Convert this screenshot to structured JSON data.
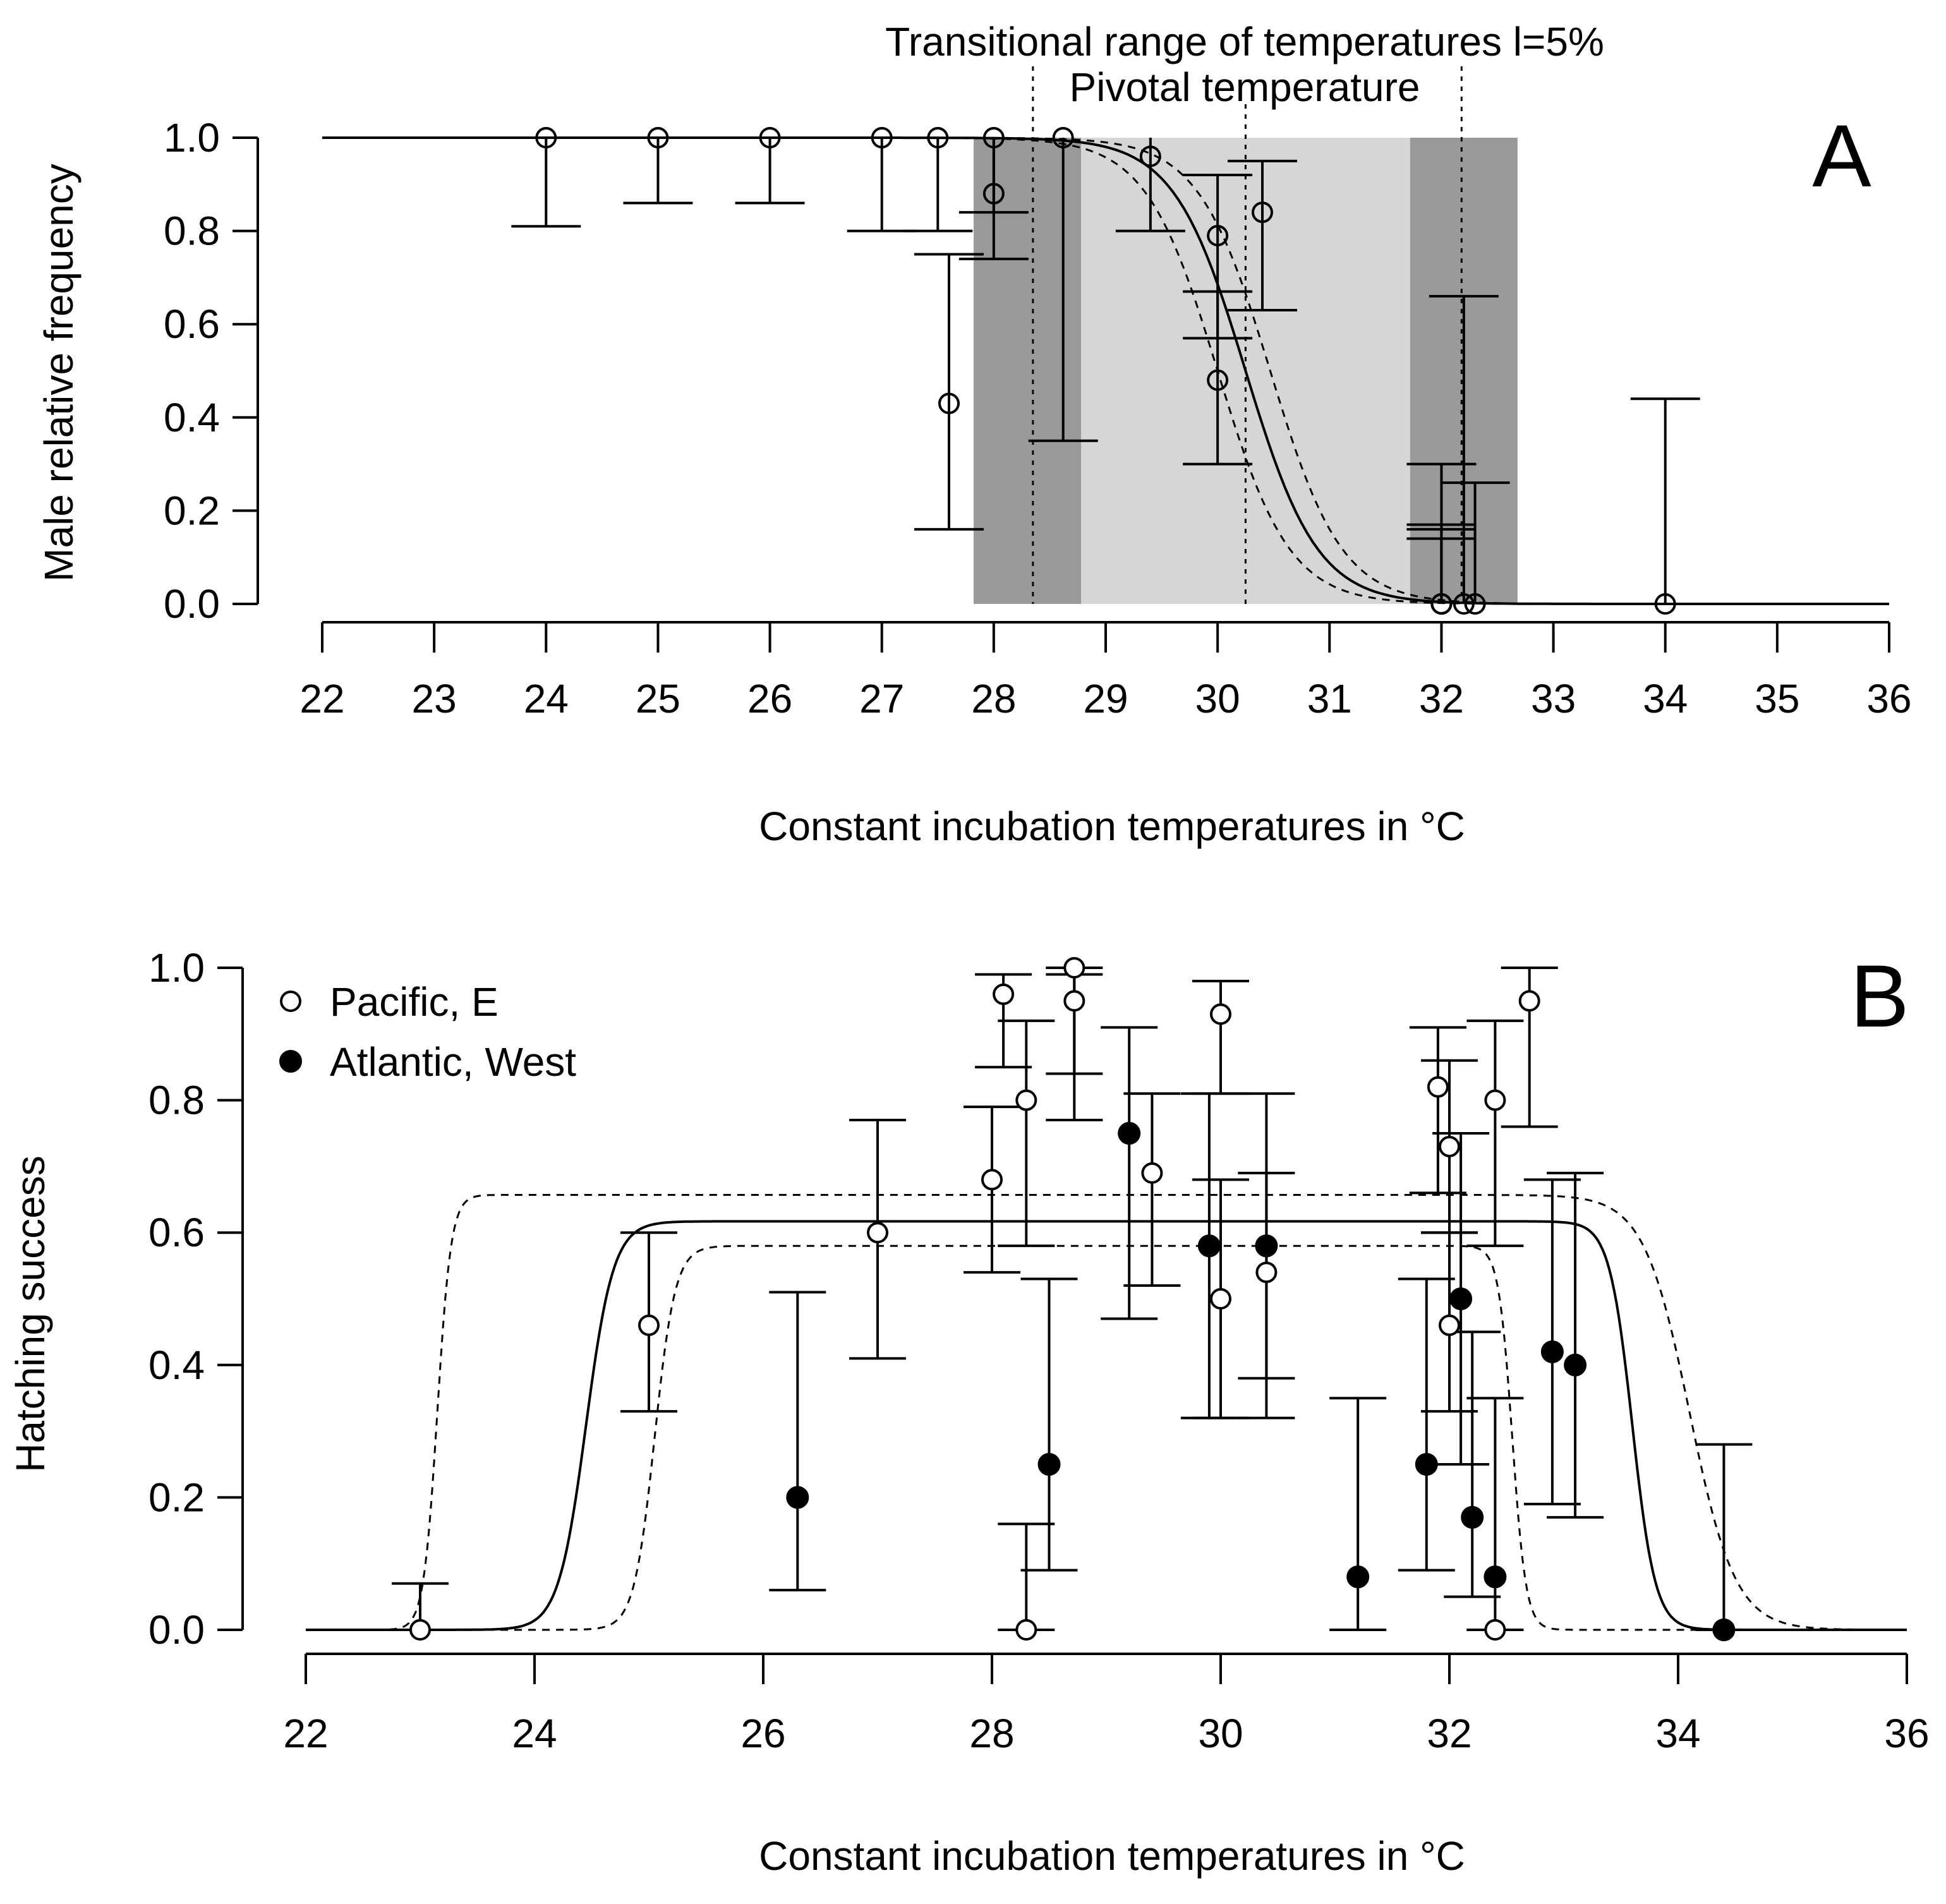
{
  "chart_data": [
    {
      "panel": "A",
      "type": "scatter",
      "panel_letter": "A",
      "xlabel": "Constant incubation temperatures in °C",
      "ylabel": "Male relative frequency",
      "xlim": [
        22,
        36
      ],
      "ylim": [
        0,
        1
      ],
      "x_ticks": [
        22,
        23,
        24,
        25,
        26,
        27,
        28,
        29,
        30,
        31,
        32,
        33,
        34,
        35,
        36
      ],
      "x_tick_labels": [
        "22",
        "23",
        "24",
        "25",
        "26",
        "27",
        "28",
        "29",
        "30",
        "31",
        "32",
        "33",
        "34",
        "35",
        "36"
      ],
      "y_ticks": [
        0,
        0.2,
        0.4,
        0.6,
        0.8,
        1.0
      ],
      "y_tick_labels": [
        "0.0",
        "0.2",
        "0.4",
        "0.6",
        "0.8",
        "1.0"
      ],
      "annotations": {
        "transitional_range": "Transitional range of temperatures l=5%",
        "pivotal": "Pivotal  temperature"
      },
      "pivotal_temperature": 30.25,
      "transitional_range": [
        28.35,
        32.18
      ],
      "shaded_bands": [
        {
          "x0": 27.82,
          "x1": 28.78,
          "shade": "dark"
        },
        {
          "x0": 28.78,
          "x1": 31.72,
          "shade": "light"
        },
        {
          "x0": 31.72,
          "x1": 32.68,
          "shade": "dark"
        }
      ],
      "model": {
        "function": "logistic",
        "P": 30.25,
        "S": -0.32,
        "ci": [
          -0.25,
          0.22
        ]
      },
      "points": [
        {
          "x": 24.0,
          "y": 1.0,
          "lo": 0.81,
          "hi": 1.0
        },
        {
          "x": 25.0,
          "y": 1.0,
          "lo": 0.86,
          "hi": 1.0
        },
        {
          "x": 26.0,
          "y": 1.0,
          "lo": 0.86,
          "hi": 1.0
        },
        {
          "x": 27.0,
          "y": 1.0,
          "lo": 0.8,
          "hi": 1.0
        },
        {
          "x": 27.5,
          "y": 1.0,
          "lo": 0.8,
          "hi": 1.0
        },
        {
          "x": 27.6,
          "y": 0.43,
          "lo": 0.16,
          "hi": 0.75
        },
        {
          "x": 28.0,
          "y": 1.0,
          "lo": 0.84,
          "hi": 1.0
        },
        {
          "x": 28.0,
          "y": 0.88,
          "lo": 0.74,
          "hi": 1.0
        },
        {
          "x": 28.62,
          "y": 1.0,
          "lo": 0.35,
          "hi": 1.0
        },
        {
          "x": 29.4,
          "y": 0.96,
          "lo": 0.8,
          "hi": 1.0
        },
        {
          "x": 30.0,
          "y": 0.79,
          "lo": 0.57,
          "hi": 0.92
        },
        {
          "x": 30.0,
          "y": 0.48,
          "lo": 0.3,
          "hi": 0.67
        },
        {
          "x": 30.4,
          "y": 0.84,
          "lo": 0.63,
          "hi": 0.95
        },
        {
          "x": 32.0,
          "y": 0.0,
          "lo": 0.0,
          "hi": 0.3
        },
        {
          "x": 32.0,
          "y": 0.0,
          "lo": 0.0,
          "hi": 0.17
        },
        {
          "x": 32.0,
          "y": 0.0,
          "lo": 0.0,
          "hi": 0.16
        },
        {
          "x": 32.0,
          "y": 0.0,
          "lo": 0.0,
          "hi": 0.14
        },
        {
          "x": 32.2,
          "y": 0.0,
          "lo": 0.0,
          "hi": 0.66
        },
        {
          "x": 32.3,
          "y": 0.0,
          "lo": 0.0,
          "hi": 0.26
        },
        {
          "x": 34.0,
          "y": 0.0,
          "lo": 0.0,
          "hi": 0.44
        }
      ]
    },
    {
      "panel": "B",
      "type": "scatter",
      "panel_letter": "B",
      "xlabel": "Constant incubation temperatures in °C",
      "ylabel": "Hatching success",
      "xlim": [
        22,
        36
      ],
      "ylim": [
        0,
        1
      ],
      "x_ticks": [
        22,
        24,
        26,
        28,
        30,
        32,
        34,
        36
      ],
      "x_tick_labels": [
        "22",
        "24",
        "26",
        "28",
        "30",
        "32",
        "34",
        "36"
      ],
      "y_ticks": [
        0,
        0.2,
        0.4,
        0.6,
        0.8,
        1.0
      ],
      "y_tick_labels": [
        "0.0",
        "0.2",
        "0.4",
        "0.6",
        "0.8",
        "1.0"
      ],
      "legend": [
        {
          "label": "Pacific, E",
          "marker": "open-circle"
        },
        {
          "label": "Atlantic, West",
          "marker": "filled-circle"
        }
      ],
      "model_curves": [
        {
          "name": "fit",
          "style": "solid",
          "plateau": 0.617,
          "rise_mid": 24.45,
          "rise_scale": 0.12,
          "fall_mid": 33.6,
          "fall_scale": 0.1
        },
        {
          "name": "upper",
          "style": "dashed",
          "plateau": 0.657,
          "rise_mid": 23.15,
          "rise_scale": 0.06,
          "fall_mid": 34.1,
          "fall_scale": 0.2
        },
        {
          "name": "lower",
          "style": "dashed",
          "plateau": 0.58,
          "rise_mid": 25.05,
          "rise_scale": 0.09,
          "fall_mid": 32.55,
          "fall_scale": 0.06
        }
      ],
      "series": [
        {
          "name": "Pacific, E",
          "marker": "open",
          "points": [
            {
              "x": 23.0,
              "y": 0.0,
              "lo": 0.0,
              "hi": 0.07
            },
            {
              "x": 25.0,
              "y": 0.46,
              "lo": 0.33,
              "hi": 0.6
            },
            {
              "x": 27.0,
              "y": 0.6,
              "lo": 0.41,
              "hi": 0.77
            },
            {
              "x": 28.0,
              "y": 0.68,
              "lo": 0.54,
              "hi": 0.79
            },
            {
              "x": 28.1,
              "y": 0.96,
              "lo": 0.85,
              "hi": 0.99
            },
            {
              "x": 28.3,
              "y": 0.8,
              "lo": 0.58,
              "hi": 0.92
            },
            {
              "x": 28.3,
              "y": 0.0,
              "lo": 0.0,
              "hi": 0.16
            },
            {
              "x": 28.72,
              "y": 0.95,
              "lo": 0.77,
              "hi": 0.99
            },
            {
              "x": 28.72,
              "y": 1.0,
              "lo": 0.84,
              "hi": 1.0
            },
            {
              "x": 29.4,
              "y": 0.69,
              "lo": 0.52,
              "hi": 0.81
            },
            {
              "x": 30.0,
              "y": 0.93,
              "lo": 0.81,
              "hi": 0.98
            },
            {
              "x": 30.0,
              "y": 0.5,
              "lo": 0.32,
              "hi": 0.68
            },
            {
              "x": 30.4,
              "y": 0.54,
              "lo": 0.38,
              "hi": 0.69
            },
            {
              "x": 31.9,
              "y": 0.82,
              "lo": 0.66,
              "hi": 0.91
            },
            {
              "x": 32.0,
              "y": 0.46,
              "lo": 0.33,
              "hi": 0.6
            },
            {
              "x": 32.0,
              "y": 0.73,
              "lo": 0.6,
              "hi": 0.86
            },
            {
              "x": 32.4,
              "y": 0.8,
              "lo": 0.58,
              "hi": 0.92
            },
            {
              "x": 32.4,
              "y": 0.0,
              "lo": 0.0,
              "hi": 0.0
            },
            {
              "x": 32.7,
              "y": 0.95,
              "lo": 0.76,
              "hi": 1.0
            }
          ]
        },
        {
          "name": "Atlantic, West",
          "marker": "filled",
          "points": [
            {
              "x": 26.3,
              "y": 0.2,
              "lo": 0.06,
              "hi": 0.51
            },
            {
              "x": 28.5,
              "y": 0.25,
              "lo": 0.09,
              "hi": 0.53
            },
            {
              "x": 29.2,
              "y": 0.75,
              "lo": 0.47,
              "hi": 0.91
            },
            {
              "x": 29.9,
              "y": 0.58,
              "lo": 0.32,
              "hi": 0.81
            },
            {
              "x": 30.4,
              "y": 0.58,
              "lo": 0.32,
              "hi": 0.81
            },
            {
              "x": 31.2,
              "y": 0.08,
              "lo": 0.0,
              "hi": 0.35
            },
            {
              "x": 31.8,
              "y": 0.25,
              "lo": 0.09,
              "hi": 0.53
            },
            {
              "x": 32.1,
              "y": 0.5,
              "lo": 0.25,
              "hi": 0.75
            },
            {
              "x": 32.2,
              "y": 0.17,
              "lo": 0.05,
              "hi": 0.45
            },
            {
              "x": 32.4,
              "y": 0.08,
              "lo": 0.0,
              "hi": 0.35
            },
            {
              "x": 32.9,
              "y": 0.42,
              "lo": 0.19,
              "hi": 0.68
            },
            {
              "x": 33.1,
              "y": 0.4,
              "lo": 0.17,
              "hi": 0.69
            },
            {
              "x": 34.4,
              "y": 0.0,
              "lo": 0.0,
              "hi": 0.28
            }
          ]
        }
      ]
    }
  ],
  "colors": {
    "ink": "#000000",
    "band_dark": "#9a9a9a",
    "band_light": "#d6d6d6",
    "background": "#ffffff"
  }
}
